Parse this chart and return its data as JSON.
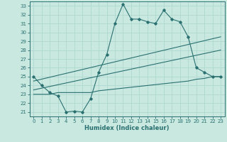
{
  "bg_color": "#c8e8e0",
  "grid_color": "#b0d8d0",
  "line_color": "#2a7070",
  "xlabel": "Humidex (Indice chaleur)",
  "xlim": [
    -0.5,
    23.5
  ],
  "ylim": [
    20.5,
    33.5
  ],
  "yticks": [
    21,
    22,
    23,
    24,
    25,
    26,
    27,
    28,
    29,
    30,
    31,
    32,
    33
  ],
  "xticks": [
    0,
    1,
    2,
    3,
    4,
    5,
    6,
    7,
    8,
    9,
    10,
    11,
    12,
    13,
    14,
    15,
    16,
    17,
    18,
    19,
    20,
    21,
    22,
    23
  ],
  "series1_x": [
    0,
    1,
    2,
    3,
    4,
    5,
    6,
    7,
    8,
    9,
    10,
    11,
    12,
    13,
    14,
    15,
    16,
    17,
    18,
    19,
    20,
    21,
    22,
    23
  ],
  "series1_y": [
    25.0,
    24.0,
    23.2,
    22.8,
    21.0,
    21.1,
    21.0,
    22.5,
    25.5,
    27.5,
    31.0,
    33.2,
    31.5,
    31.5,
    31.2,
    31.0,
    32.5,
    31.5,
    31.2,
    29.5,
    26.0,
    25.5,
    25.0,
    25.0
  ],
  "series2_x": [
    0,
    23
  ],
  "series2_y": [
    24.5,
    29.5
  ],
  "series3_x": [
    0,
    23
  ],
  "series3_y": [
    23.5,
    28.0
  ],
  "series4_x": [
    0,
    1,
    2,
    3,
    4,
    5,
    6,
    7,
    8,
    9,
    10,
    11,
    12,
    13,
    14,
    15,
    16,
    17,
    18,
    19,
    20,
    21,
    22,
    23
  ],
  "series4_y": [
    23.0,
    23.0,
    23.0,
    23.2,
    23.2,
    23.2,
    23.2,
    23.2,
    23.4,
    23.5,
    23.6,
    23.7,
    23.8,
    23.9,
    24.0,
    24.1,
    24.2,
    24.3,
    24.4,
    24.5,
    24.7,
    24.8,
    25.0,
    25.0
  ]
}
